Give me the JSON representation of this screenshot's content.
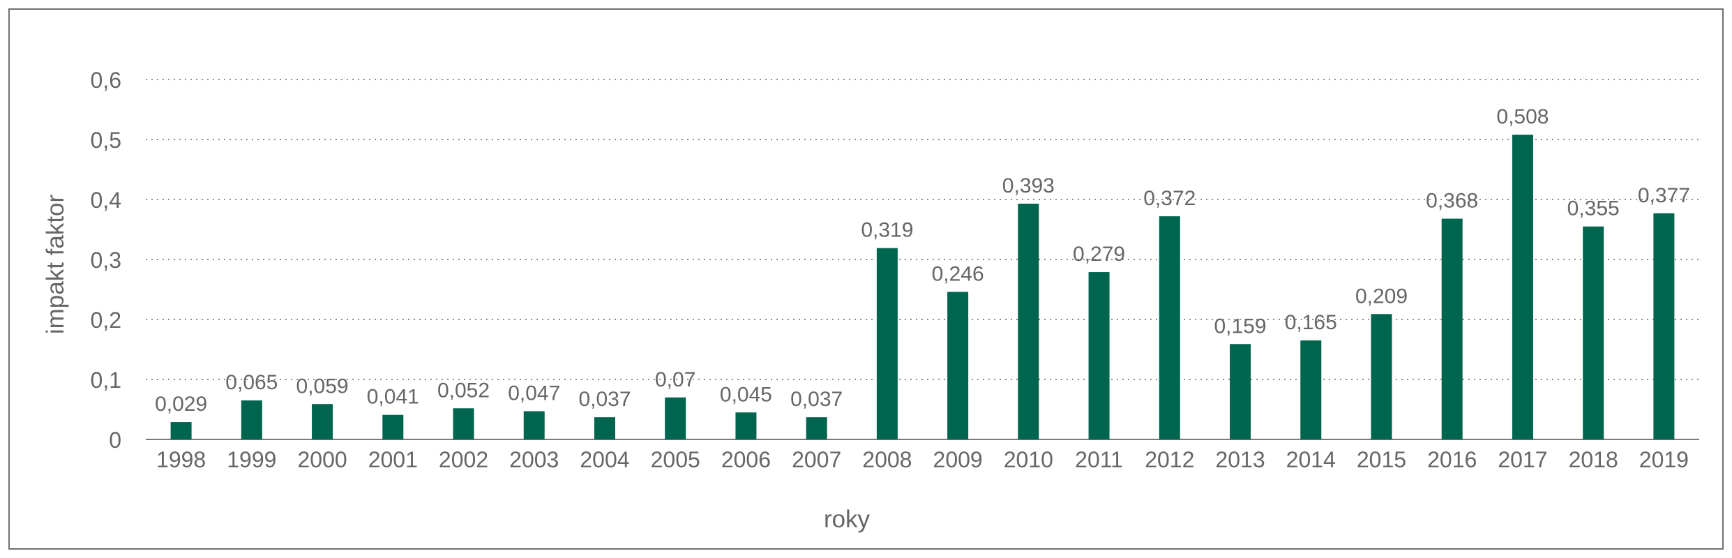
{
  "chart_data": {
    "type": "bar",
    "title": "",
    "xlabel": "roky",
    "ylabel": "impakt faktor",
    "ylim": [
      0,
      0.6
    ],
    "yticks": [
      0,
      0.1,
      0.2,
      0.3,
      0.4,
      0.5,
      0.6
    ],
    "ytick_labels": [
      "0",
      "0,1",
      "0,2",
      "0,3",
      "0,4",
      "0,5",
      "0,6"
    ],
    "grid": true,
    "bar_color": "#00654f",
    "categories": [
      "1998",
      "1999",
      "2000",
      "2001",
      "2002",
      "2003",
      "2004",
      "2005",
      "2006",
      "2007",
      "2008",
      "2009",
      "2010",
      "2011",
      "2012",
      "2013",
      "2014",
      "2015",
      "2016",
      "2017",
      "2018",
      "2019"
    ],
    "values": [
      0.029,
      0.065,
      0.059,
      0.041,
      0.052,
      0.047,
      0.037,
      0.07,
      0.045,
      0.037,
      0.319,
      0.246,
      0.393,
      0.279,
      0.372,
      0.159,
      0.165,
      0.209,
      0.368,
      0.508,
      0.355,
      0.377
    ],
    "value_labels": [
      "0,029",
      "0,065",
      "0,059",
      "0,041",
      "0,052",
      "0,047",
      "0,037",
      "0,07",
      "0,045",
      "0,037",
      "0,319",
      "0,246",
      "0,393",
      "0,279",
      "0,372",
      "0,159",
      "0,165",
      "0,209",
      "0,368",
      "0,508",
      "0,355",
      "0,377"
    ]
  }
}
